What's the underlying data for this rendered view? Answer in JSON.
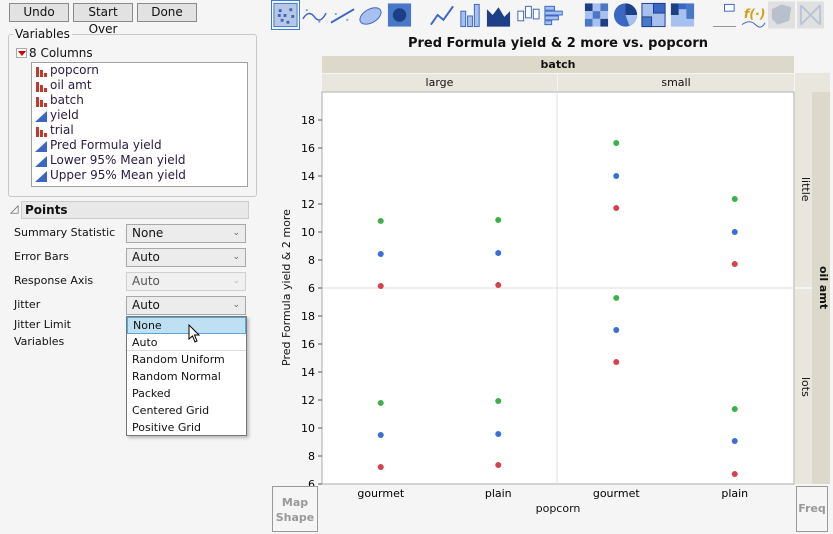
{
  "buttons": {
    "undo": "Undo",
    "start_over": "Start Over",
    "done": "Done"
  },
  "variables": {
    "title": "Variables",
    "columns_label": "8 Columns",
    "columns": [
      {
        "name": "popcorn",
        "type": "nominal"
      },
      {
        "name": "oil amt",
        "type": "nominal"
      },
      {
        "name": "batch",
        "type": "nominal"
      },
      {
        "name": "yield",
        "type": "continuous"
      },
      {
        "name": "trial",
        "type": "nominal"
      },
      {
        "name": "Pred Formula yield",
        "type": "continuous"
      },
      {
        "name": "Lower 95% Mean yield",
        "type": "continuous"
      },
      {
        "name": "Upper 95% Mean yield",
        "type": "continuous"
      }
    ]
  },
  "points": {
    "title": "Points",
    "summary_statistic": {
      "label": "Summary Statistic",
      "value": "None"
    },
    "error_bars": {
      "label": "Error Bars",
      "value": "Auto"
    },
    "response_axis": {
      "label": "Response Axis",
      "value": "Auto"
    },
    "jitter": {
      "label": "Jitter",
      "value": "Auto",
      "options": [
        "None",
        "Auto",
        "Random Uniform",
        "Random Normal",
        "Packed",
        "Centered Grid",
        "Positive Grid"
      ],
      "highlighted": "None"
    },
    "jitter_limit": {
      "label": "Jitter Limit"
    },
    "variables": {
      "label": "Variables"
    }
  },
  "toolbar": {
    "icons": [
      "points",
      "smoother",
      "line-of-fit",
      "ellipse",
      "contour",
      "line",
      "bar",
      "area",
      "box-plot",
      "histogram",
      "heatmap",
      "pie",
      "treemap",
      "mosaic",
      "caption-box",
      "formula",
      "map-shapes",
      "parallel"
    ],
    "selected": "points"
  },
  "graph": {
    "map_shape": "Map Shape",
    "freq": "Freq"
  },
  "chart_data": {
    "type": "scatter",
    "title": "Pred Formula yield & 2 more vs. popcorn",
    "xlabel": "popcorn",
    "ylabel": "Pred Formula yield & 2 more",
    "group_x": {
      "label": "batch",
      "levels": [
        "large",
        "small"
      ]
    },
    "group_y": {
      "label": "oil amt",
      "levels": [
        "little",
        "lots"
      ]
    },
    "categories": [
      "gourmet",
      "plain"
    ],
    "ylim": [
      6,
      20
    ],
    "yticks": [
      6,
      8,
      10,
      12,
      14,
      16,
      18
    ],
    "colors": [
      "#3b6fd6",
      "#d6404f",
      "#3cb04a"
    ],
    "panels": [
      {
        "batch": "large",
        "oil": "little",
        "values": {
          "gourmet": [
            8.43,
            6.14,
            10.79
          ],
          "plain": [
            8.5,
            6.21,
            10.86
          ]
        }
      },
      {
        "batch": "small",
        "oil": "little",
        "values": {
          "gourmet": [
            14.0,
            11.71,
            16.36
          ],
          "plain": [
            10.0,
            7.71,
            12.36
          ]
        }
      },
      {
        "batch": "large",
        "oil": "lots",
        "values": {
          "gourmet": [
            9.5,
            7.21,
            11.79
          ],
          "plain": [
            9.57,
            7.36,
            11.93
          ]
        }
      },
      {
        "batch": "small",
        "oil": "lots",
        "values": {
          "gourmet": [
            17.0,
            14.71,
            19.29
          ],
          "plain": [
            9.07,
            6.71,
            11.36
          ]
        }
      }
    ]
  }
}
